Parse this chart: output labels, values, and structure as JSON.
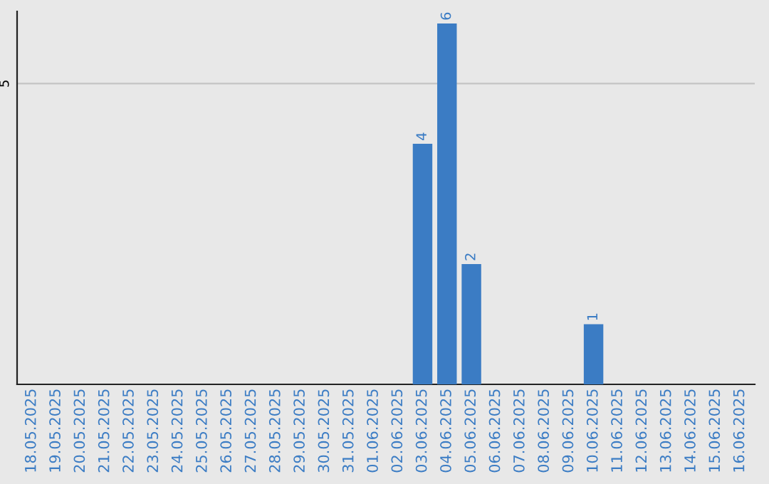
{
  "chart_data": {
    "type": "bar",
    "ylim": [
      0,
      6.2
    ],
    "categories": [
      "18.05.2025",
      "19.05.2025",
      "20.05.2025",
      "21.05.2025",
      "22.05.2025",
      "23.05.2025",
      "24.05.2025",
      "25.05.2025",
      "26.05.2025",
      "27.05.2025",
      "28.05.2025",
      "29.05.2025",
      "30.05.2025",
      "31.05.2025",
      "01.06.2025",
      "02.06.2025",
      "03.06.2025",
      "04.06.2025",
      "05.06.2025",
      "06.06.2025",
      "07.06.2025",
      "08.06.2025",
      "09.06.2025",
      "10.06.2025",
      "11.06.2025",
      "12.06.2025",
      "13.06.2025",
      "14.06.2025",
      "15.06.2025",
      "16.06.2025"
    ],
    "values": [
      null,
      null,
      null,
      null,
      null,
      null,
      null,
      null,
      null,
      null,
      null,
      null,
      null,
      null,
      null,
      null,
      4,
      6,
      2,
      null,
      null,
      null,
      null,
      1,
      null,
      null,
      null,
      null,
      null,
      null
    ],
    "data_labels": true,
    "color": "#3b7cc4",
    "ref_lines": [
      {
        "axis": "y",
        "value": 5,
        "label": "5",
        "color": "#c4c4c4"
      }
    ],
    "legend": false
  }
}
